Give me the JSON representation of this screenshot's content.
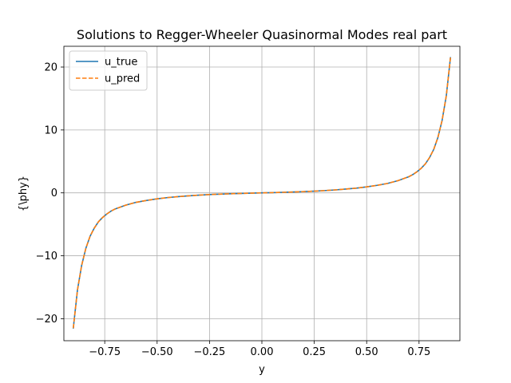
{
  "chart_data": {
    "type": "line",
    "title": "Solutions to Regger-Wheeler Quasinormal Modes real part",
    "xlabel": "y",
    "ylabel": "{\\phy}",
    "xlim": [
      -0.945,
      0.945
    ],
    "ylim": [
      -23.5,
      23.3
    ],
    "xticks": [
      -0.75,
      -0.5,
      -0.25,
      0.0,
      0.25,
      0.5,
      0.75
    ],
    "xtick_labels": [
      "−0.75",
      "−0.50",
      "−0.25",
      "0.00",
      "0.25",
      "0.50",
      "0.75"
    ],
    "yticks": [
      -20,
      -10,
      0,
      10,
      20
    ],
    "ytick_labels": [
      "−20",
      "−10",
      "0",
      "10",
      "20"
    ],
    "grid": true,
    "legend": "upper-left",
    "x": [
      -0.9,
      -0.88,
      -0.86,
      -0.84,
      -0.82,
      -0.8,
      -0.78,
      -0.76,
      -0.74,
      -0.72,
      -0.7,
      -0.65,
      -0.6,
      -0.55,
      -0.5,
      -0.45,
      -0.4,
      -0.35,
      -0.3,
      -0.25,
      -0.2,
      -0.15,
      -0.1,
      -0.05,
      0.0,
      0.05,
      0.1,
      0.15,
      0.2,
      0.25,
      0.3,
      0.35,
      0.4,
      0.45,
      0.5,
      0.55,
      0.6,
      0.65,
      0.7,
      0.72,
      0.74,
      0.76,
      0.78,
      0.8,
      0.82,
      0.84,
      0.86,
      0.88,
      0.9
    ],
    "series": [
      {
        "name": "u_true",
        "color": "#1f77b4",
        "style": "solid",
        "values": [
          -21.5,
          -15.4,
          -11.5,
          -8.8,
          -6.9,
          -5.6,
          -4.6,
          -3.9,
          -3.35,
          -2.9,
          -2.55,
          -1.95,
          -1.5,
          -1.2,
          -0.95,
          -0.75,
          -0.6,
          -0.47,
          -0.36,
          -0.27,
          -0.2,
          -0.14,
          -0.09,
          -0.04,
          0.0,
          0.04,
          0.09,
          0.14,
          0.2,
          0.27,
          0.36,
          0.47,
          0.6,
          0.75,
          0.95,
          1.2,
          1.5,
          1.95,
          2.55,
          2.9,
          3.35,
          3.9,
          4.6,
          5.6,
          6.9,
          8.8,
          11.5,
          15.4,
          21.5
        ]
      },
      {
        "name": "u_pred",
        "color": "#ff7f0e",
        "style": "dashed",
        "values": [
          -21.5,
          -15.4,
          -11.5,
          -8.8,
          -6.9,
          -5.6,
          -4.6,
          -3.9,
          -3.35,
          -2.9,
          -2.55,
          -1.95,
          -1.5,
          -1.2,
          -0.95,
          -0.75,
          -0.6,
          -0.47,
          -0.36,
          -0.27,
          -0.2,
          -0.14,
          -0.09,
          -0.04,
          0.0,
          0.04,
          0.09,
          0.14,
          0.2,
          0.27,
          0.36,
          0.47,
          0.6,
          0.75,
          0.95,
          1.2,
          1.5,
          1.95,
          2.55,
          2.9,
          3.35,
          3.9,
          4.6,
          5.6,
          6.9,
          8.8,
          11.5,
          15.4,
          21.5
        ]
      }
    ]
  }
}
